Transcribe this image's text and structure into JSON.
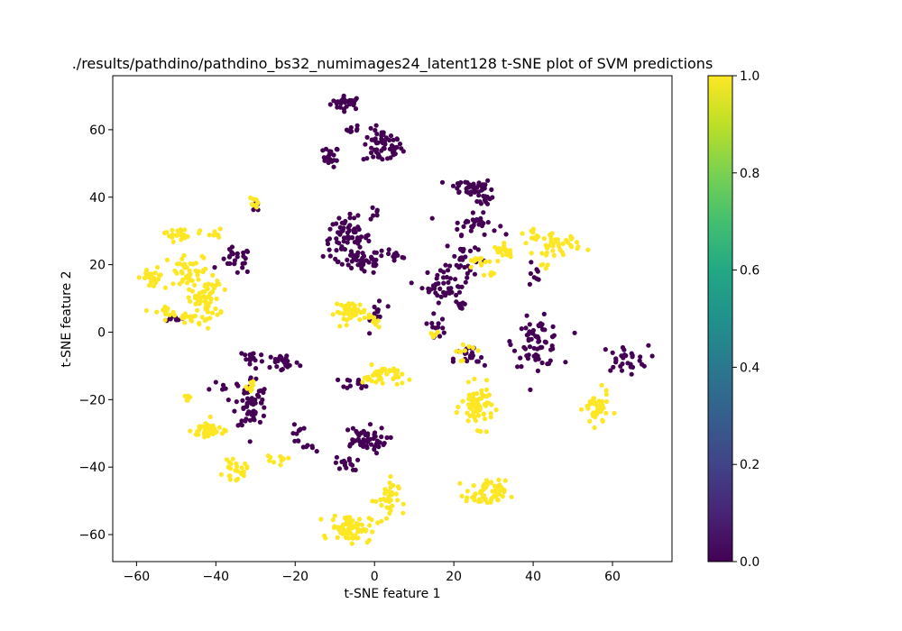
{
  "chart_data": {
    "type": "scatter",
    "title": "./results/pathdino/pathdino_bs32_numimages24_latent128 t-SNE plot of SVM predictions",
    "xlabel": "t-SNE feature 1",
    "ylabel": "t-SNE feature 2",
    "xlim": [
      -66,
      75
    ],
    "ylim": [
      -68,
      76
    ],
    "xticks": [
      -60,
      -40,
      -20,
      0,
      20,
      40,
      60
    ],
    "yticks": [
      -60,
      -40,
      -20,
      0,
      20,
      40,
      60
    ],
    "grid": false,
    "colormap": "viridis",
    "colorbar": {
      "range": [
        0.0,
        1.0
      ],
      "ticks": [
        "0.0",
        "0.2",
        "0.4",
        "0.6",
        "0.8",
        "1.0"
      ]
    },
    "classes": [
      {
        "value": 0,
        "color": "#440154"
      },
      {
        "value": 1,
        "color": "#fde725"
      }
    ],
    "clusters": [
      {
        "value": 0,
        "cx": -7,
        "cy": 68,
        "sx": 2.0,
        "sy": 1.0,
        "n": 30
      },
      {
        "value": 0,
        "cx": -5,
        "cy": 60,
        "sx": 1.0,
        "sy": 0.8,
        "n": 8
      },
      {
        "value": 0,
        "cx": -11,
        "cy": 52,
        "sx": 1.0,
        "sy": 1.5,
        "n": 20
      },
      {
        "value": 0,
        "cx": 2,
        "cy": 55,
        "sx": 2.5,
        "sy": 2.5,
        "n": 60
      },
      {
        "value": 0,
        "cx": 24,
        "cy": 43,
        "sx": 3.0,
        "sy": 1.3,
        "n": 40
      },
      {
        "value": 0,
        "cx": 28,
        "cy": 40,
        "sx": 1.0,
        "sy": 1.5,
        "n": 15
      },
      {
        "value": 0,
        "cx": 25,
        "cy": 32,
        "sx": 3.0,
        "sy": 1.5,
        "n": 30
      },
      {
        "value": 0,
        "cx": 22,
        "cy": 22,
        "sx": 2.0,
        "sy": 3.0,
        "n": 25
      },
      {
        "value": 0,
        "cx": 18,
        "cy": 14,
        "sx": 3.0,
        "sy": 2.5,
        "n": 45
      },
      {
        "value": 0,
        "cx": 22,
        "cy": 8,
        "sx": 0.8,
        "sy": 0.8,
        "n": 10
      },
      {
        "value": 0,
        "cx": -7,
        "cy": 28,
        "sx": 3.0,
        "sy": 3.0,
        "n": 70
      },
      {
        "value": 0,
        "cx": -3,
        "cy": 21,
        "sx": 3.0,
        "sy": 2.0,
        "n": 45
      },
      {
        "value": 0,
        "cx": 0,
        "cy": 35,
        "sx": 1.0,
        "sy": 1.0,
        "n": 6
      },
      {
        "value": 0,
        "cx": 5,
        "cy": 23,
        "sx": 1.0,
        "sy": 1.0,
        "n": 6
      },
      {
        "value": 0,
        "cx": -35,
        "cy": 21,
        "sx": 2.0,
        "sy": 2.0,
        "n": 25
      },
      {
        "value": 0,
        "cx": -30,
        "cy": 37,
        "sx": 0.7,
        "sy": 0.7,
        "n": 6
      },
      {
        "value": 0,
        "cx": 1,
        "cy": 6,
        "sx": 1.0,
        "sy": 2.5,
        "n": 12
      },
      {
        "value": 0,
        "cx": -50,
        "cy": 4,
        "sx": 1.5,
        "sy": 0.6,
        "n": 8
      },
      {
        "value": 0,
        "cx": 16,
        "cy": 1,
        "sx": 1.0,
        "sy": 1.5,
        "n": 12
      },
      {
        "value": 0,
        "cx": 41,
        "cy": -3,
        "sx": 3.0,
        "sy": 3.5,
        "n": 70
      },
      {
        "value": 0,
        "cx": 40,
        "cy": 17,
        "sx": 1.0,
        "sy": 2.5,
        "n": 8
      },
      {
        "value": 0,
        "cx": 63,
        "cy": -8,
        "sx": 3.0,
        "sy": 2.0,
        "n": 30
      },
      {
        "value": 0,
        "cx": 24,
        "cy": -8,
        "sx": 2.0,
        "sy": 2.0,
        "n": 20
      },
      {
        "value": 0,
        "cx": -31,
        "cy": -8,
        "sx": 1.5,
        "sy": 1.5,
        "n": 20
      },
      {
        "value": 0,
        "cx": -23,
        "cy": -9,
        "sx": 2.0,
        "sy": 1.5,
        "n": 25
      },
      {
        "value": 0,
        "cx": -31,
        "cy": -21,
        "sx": 2.0,
        "sy": 4.0,
        "n": 60
      },
      {
        "value": 0,
        "cx": -38,
        "cy": -16,
        "sx": 1.5,
        "sy": 0.8,
        "n": 8
      },
      {
        "value": 0,
        "cx": -4,
        "cy": -15,
        "sx": 2.0,
        "sy": 0.8,
        "n": 12
      },
      {
        "value": 0,
        "cx": -3,
        "cy": -32,
        "sx": 3.0,
        "sy": 2.0,
        "n": 55
      },
      {
        "value": 0,
        "cx": -7,
        "cy": -39,
        "sx": 1.5,
        "sy": 1.0,
        "n": 15
      },
      {
        "value": 0,
        "cx": -20,
        "cy": -30,
        "sx": 1.0,
        "sy": 1.5,
        "n": 10
      },
      {
        "value": 0,
        "cx": -16,
        "cy": -34,
        "sx": 1.0,
        "sy": 1.0,
        "n": 6
      },
      {
        "value": 0,
        "cx": 6,
        "cy": 22,
        "sx": 0.8,
        "sy": 0.8,
        "n": 4
      },
      {
        "value": 1,
        "cx": -50,
        "cy": 29,
        "sx": 1.5,
        "sy": 1.0,
        "n": 20
      },
      {
        "value": 1,
        "cx": -41,
        "cy": 29,
        "sx": 1.5,
        "sy": 0.8,
        "n": 10
      },
      {
        "value": 1,
        "cx": -56,
        "cy": 16,
        "sx": 1.5,
        "sy": 1.5,
        "n": 25
      },
      {
        "value": 1,
        "cx": -46,
        "cy": 17,
        "sx": 3.0,
        "sy": 3.0,
        "n": 50
      },
      {
        "value": 1,
        "cx": -43,
        "cy": 9,
        "sx": 2.0,
        "sy": 3.0,
        "n": 60
      },
      {
        "value": 1,
        "cx": -53,
        "cy": 6,
        "sx": 1.5,
        "sy": 1.0,
        "n": 12
      },
      {
        "value": 1,
        "cx": -47,
        "cy": 5,
        "sx": 2.0,
        "sy": 0.7,
        "n": 12
      },
      {
        "value": 1,
        "cx": -30,
        "cy": 38,
        "sx": 0.8,
        "sy": 0.8,
        "n": 8
      },
      {
        "value": 1,
        "cx": -6,
        "cy": 6,
        "sx": 2.0,
        "sy": 1.5,
        "n": 45
      },
      {
        "value": 1,
        "cx": 0,
        "cy": 3,
        "sx": 1.0,
        "sy": 1.0,
        "n": 10
      },
      {
        "value": 1,
        "cx": 41,
        "cy": 29,
        "sx": 1.0,
        "sy": 1.5,
        "n": 10
      },
      {
        "value": 1,
        "cx": 46,
        "cy": 26,
        "sx": 3.0,
        "sy": 1.5,
        "n": 40
      },
      {
        "value": 1,
        "cx": 33,
        "cy": 24,
        "sx": 1.5,
        "sy": 1.0,
        "n": 18
      },
      {
        "value": 1,
        "cx": 26,
        "cy": 21,
        "sx": 1.5,
        "sy": 0.8,
        "n": 12
      },
      {
        "value": 1,
        "cx": 30,
        "cy": 17,
        "sx": 1.0,
        "sy": 0.5,
        "n": 6
      },
      {
        "value": 1,
        "cx": 15,
        "cy": -1,
        "sx": 0.6,
        "sy": 0.8,
        "n": 6
      },
      {
        "value": 1,
        "cx": 22,
        "cy": -5,
        "sx": 1.5,
        "sy": 1.5,
        "n": 10
      },
      {
        "value": 1,
        "cx": 2,
        "cy": -13,
        "sx": 2.5,
        "sy": 1.5,
        "n": 40
      },
      {
        "value": 1,
        "cx": 26,
        "cy": -22,
        "sx": 2.0,
        "sy": 3.0,
        "n": 70
      },
      {
        "value": 1,
        "cx": 56,
        "cy": -23,
        "sx": 1.5,
        "sy": 2.5,
        "n": 45
      },
      {
        "value": 1,
        "cx": -42,
        "cy": -29,
        "sx": 2.0,
        "sy": 1.5,
        "n": 40
      },
      {
        "value": 1,
        "cx": -35,
        "cy": -41,
        "sx": 1.5,
        "sy": 1.3,
        "n": 25
      },
      {
        "value": 1,
        "cx": -25,
        "cy": -38,
        "sx": 1.5,
        "sy": 0.8,
        "n": 10
      },
      {
        "value": 1,
        "cx": -47,
        "cy": -19,
        "sx": 0.8,
        "sy": 1.0,
        "n": 6
      },
      {
        "value": 1,
        "cx": -31,
        "cy": -16,
        "sx": 1.0,
        "sy": 1.0,
        "n": 8
      },
      {
        "value": 1,
        "cx": -6,
        "cy": -58,
        "sx": 2.5,
        "sy": 2.0,
        "n": 75
      },
      {
        "value": 1,
        "cx": 3,
        "cy": -50,
        "sx": 1.5,
        "sy": 3.5,
        "n": 35
      },
      {
        "value": 1,
        "cx": 28,
        "cy": -48,
        "sx": 2.5,
        "sy": 2.0,
        "n": 60
      },
      {
        "value": 1,
        "cx": 42,
        "cy": 20,
        "sx": 0.8,
        "sy": 0.8,
        "n": 4
      }
    ]
  }
}
